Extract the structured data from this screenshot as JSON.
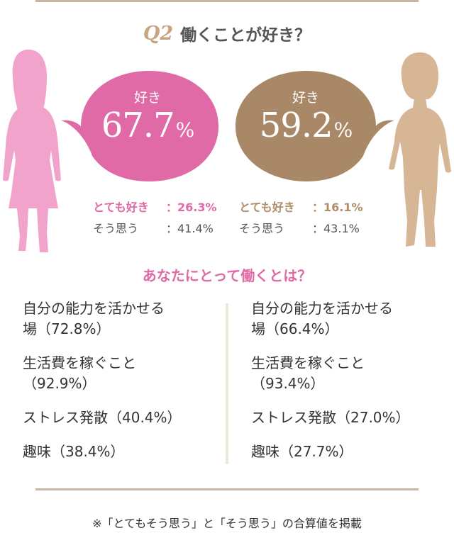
{
  "header": {
    "question_label": "Q2",
    "question_text": "働くことが好き？"
  },
  "colors": {
    "pink": "#e06aa5",
    "pink_silhouette": "#f2a3cc",
    "tan": "#a88866",
    "tan_silhouette": "#d6b694",
    "rule": "#c7b7a2",
    "divider": "#f1e6da"
  },
  "icons": {
    "left": "woman-silhouette-icon",
    "right": "woman-silhouette-icon"
  },
  "chart_data": {
    "type": "table",
    "groups": [
      {
        "like_label": "好き",
        "like_total_pct": "67.7",
        "like_total_value": 67.7,
        "like_total_unit": "%",
        "breakdown": [
          {
            "label": "とても好き",
            "value": 26.3,
            "text": "：26.3%"
          },
          {
            "label": "そう思う",
            "value": 41.4,
            "text": "：41.4%"
          }
        ],
        "work_meaning": [
          {
            "text": "自分の能力を活かせる",
            "text2": "場（72.8%）",
            "value": 72.8
          },
          {
            "text": "生活費を稼ぐこと",
            "text2": "（92.9%）",
            "value": 92.9
          },
          {
            "text": "ストレス発散（40.4%）",
            "value": 40.4
          },
          {
            "text": "趣味（38.4%）",
            "value": 38.4
          }
        ]
      },
      {
        "like_label": "好き",
        "like_total_pct": "59.2",
        "like_total_value": 59.2,
        "like_total_unit": "%",
        "breakdown": [
          {
            "label": "とても好き",
            "value": 16.1,
            "text": "：16.1%"
          },
          {
            "label": "そう思う",
            "value": 43.1,
            "text": "：43.1%"
          }
        ],
        "work_meaning": [
          {
            "text": "自分の能力を活かせる",
            "text2": "場（66.4%）",
            "value": 66.4
          },
          {
            "text": "生活費を稼ぐこと",
            "text2": "（93.4%）",
            "value": 93.4
          },
          {
            "text": "ストレス発散（27.0%）",
            "value": 27.0
          },
          {
            "text": "趣味（27.7%）",
            "value": 27.7
          }
        ]
      }
    ]
  },
  "section_title": "あなたにとって働くとは？",
  "footnote": "※「とてもそう思う」と「そう思う」の合算値を掲載"
}
